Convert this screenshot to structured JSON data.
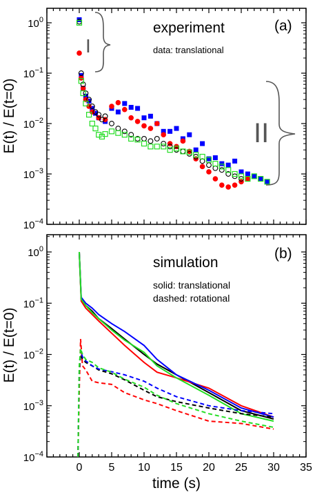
{
  "chart_data": [
    {
      "panel_id": "a",
      "type": "scatter",
      "panel_label": "(a)",
      "title": "experiment",
      "subtitle": "data: translational",
      "ylabel": "E(t) / E(t=0)",
      "xlabel": "",
      "xlim": [
        -5,
        35
      ],
      "ylim": [
        0.0001,
        2
      ],
      "yscale": "log",
      "yticks": [
        1,
        0.1,
        0.01,
        0.001,
        0.0001
      ],
      "ytick_labels": [
        "10^0",
        "10^-1",
        "10^-2",
        "10^-3",
        "10^-4"
      ],
      "annotations": [
        {
          "text": "I",
          "spans_y": [
            0.09,
            1.3
          ],
          "at_x": 1.5
        },
        {
          "text": "II",
          "spans_y": [
            0.0006,
            0.09
          ],
          "at_x": 31
        }
      ],
      "colors": {
        "black": "#000000",
        "red": "#ff0000",
        "blue": "#0000ff",
        "green": "#22dd22"
      },
      "series": [
        {
          "color_key": "blue",
          "marker": "filled-square",
          "x": [
            0,
            0.3,
            0.6,
            1,
            1.5,
            2,
            2.5,
            3,
            4,
            5,
            6,
            7,
            8,
            9,
            10,
            11,
            12,
            13,
            14,
            15,
            16,
            17,
            18,
            19,
            20,
            21,
            22,
            23,
            24,
            25,
            26,
            27,
            28,
            29
          ],
          "y": [
            1.15,
            0.09,
            0.05,
            0.035,
            0.028,
            0.02,
            0.016,
            0.013,
            0.011,
            0.02,
            0.017,
            0.025,
            0.021,
            0.02,
            0.013,
            0.014,
            0.01,
            0.007,
            0.007,
            0.008,
            0.005,
            0.006,
            0.003,
            0.004,
            0.002,
            0.0021,
            0.0016,
            0.0015,
            0.0018,
            0.0011,
            0.001,
            0.0009,
            0.0008,
            0.0007
          ]
        },
        {
          "color_key": "red",
          "marker": "filled-circle",
          "x": [
            0,
            0.3,
            0.6,
            1,
            1.5,
            2,
            3,
            4,
            5,
            6,
            7,
            8,
            9,
            10,
            11,
            12,
            13,
            14,
            15,
            16,
            17,
            18,
            19,
            20,
            21,
            22,
            23,
            24,
            25,
            26
          ],
          "y": [
            0.25,
            0.08,
            0.05,
            0.03,
            0.022,
            0.017,
            0.013,
            0.012,
            0.022,
            0.026,
            0.019,
            0.013,
            0.011,
            0.009,
            0.008,
            0.01,
            0.006,
            0.004,
            0.0035,
            0.0045,
            0.0028,
            0.002,
            0.0014,
            0.0011,
            0.0008,
            0.0006,
            0.00055,
            0.0006,
            0.0007,
            0.0008
          ]
        },
        {
          "color_key": "black",
          "marker": "open-circle",
          "x": [
            0,
            0.3,
            0.6,
            1,
            1.5,
            2,
            2.5,
            3,
            3.5,
            4,
            5,
            6,
            7,
            8,
            9,
            10,
            11,
            12,
            13,
            14,
            15,
            16,
            17,
            18,
            19,
            20,
            21,
            22,
            23,
            24,
            25
          ],
          "y": [
            1.05,
            0.1,
            0.06,
            0.04,
            0.03,
            0.022,
            0.017,
            0.015,
            0.012,
            0.014,
            0.01,
            0.008,
            0.007,
            0.006,
            0.005,
            0.005,
            0.0045,
            0.005,
            0.004,
            0.0035,
            0.003,
            0.0028,
            0.0025,
            0.0022,
            0.0018,
            0.0015,
            0.0013,
            0.0012,
            0.001,
            0.0009,
            0.0008
          ]
        },
        {
          "color_key": "green",
          "marker": "open-square",
          "x": [
            0,
            0.3,
            0.6,
            1,
            1.5,
            2,
            2.5,
            3,
            3.5,
            4,
            5,
            6,
            7,
            8,
            9,
            10,
            11,
            12,
            13,
            14,
            15,
            16,
            17,
            18,
            19,
            20,
            21,
            22,
            23,
            24,
            25,
            26,
            27,
            28,
            29
          ],
          "y": [
            1.0,
            0.07,
            0.04,
            0.025,
            0.015,
            0.01,
            0.008,
            0.006,
            0.0055,
            0.0062,
            0.007,
            0.0065,
            0.006,
            0.005,
            0.0048,
            0.004,
            0.0035,
            0.0035,
            0.0035,
            0.003,
            0.0032,
            0.0028,
            0.0027,
            0.0024,
            0.0022,
            0.0019,
            0.0016,
            0.0014,
            0.0012,
            0.001,
            0.0009,
            0.0008,
            0.0009,
            0.0008,
            0.0007
          ]
        }
      ]
    },
    {
      "panel_id": "b",
      "type": "line",
      "panel_label": "(b)",
      "title": "simulation",
      "legend_text": [
        "solid: translational",
        "dashed: rotational"
      ],
      "ylabel": "E(t) / E(t=0)",
      "xlabel": "time (s)",
      "xlim": [
        -5,
        35
      ],
      "ylim": [
        0.0001,
        2
      ],
      "yscale": "log",
      "xticks": [
        0,
        5,
        10,
        15,
        20,
        25,
        30,
        35
      ],
      "yticks": [
        1,
        0.1,
        0.01,
        0.001,
        0.0001
      ],
      "ytick_labels": [
        "10^0",
        "10^-1",
        "10^-2",
        "10^-3",
        "10^-4"
      ],
      "colors": {
        "black": "#000000",
        "red": "#ff0000",
        "blue": "#0000ff",
        "green": "#22dd22"
      },
      "series": [
        {
          "color_key": "black",
          "style": "solid",
          "x": [
            0,
            0.3,
            1,
            2,
            3,
            5,
            7,
            10,
            12,
            15,
            20,
            25,
            30
          ],
          "y": [
            1,
            0.12,
            0.09,
            0.07,
            0.05,
            0.032,
            0.02,
            0.01,
            0.0065,
            0.004,
            0.0018,
            0.0008,
            0.00055
          ]
        },
        {
          "color_key": "red",
          "style": "solid",
          "x": [
            0,
            0.3,
            1,
            2,
            3,
            5,
            7,
            10,
            12,
            15,
            20,
            25,
            30
          ],
          "y": [
            1,
            0.11,
            0.08,
            0.06,
            0.045,
            0.026,
            0.015,
            0.007,
            0.0045,
            0.0035,
            0.0022,
            0.001,
            0.0006
          ]
        },
        {
          "color_key": "blue",
          "style": "solid",
          "x": [
            0,
            0.3,
            1,
            2,
            3,
            5,
            7,
            10,
            12,
            15,
            20,
            25,
            30
          ],
          "y": [
            1,
            0.13,
            0.1,
            0.08,
            0.06,
            0.04,
            0.028,
            0.015,
            0.008,
            0.004,
            0.002,
            0.0009,
            0.0006
          ]
        },
        {
          "color_key": "green",
          "style": "solid",
          "x": [
            0,
            0.3,
            1,
            2,
            3,
            5,
            7,
            10,
            12,
            15,
            20,
            25,
            30
          ],
          "y": [
            1,
            0.12,
            0.09,
            0.065,
            0.05,
            0.03,
            0.019,
            0.011,
            0.006,
            0.0035,
            0.0016,
            0.0007,
            0.0005
          ]
        },
        {
          "color_key": "black",
          "style": "dashed",
          "x": [
            -0.2,
            0,
            0.2,
            0.5,
            1,
            2,
            3,
            5,
            7,
            10,
            12,
            15,
            20,
            25,
            30
          ],
          "y": [
            0.0001,
            0.004,
            0.01,
            0.008,
            0.007,
            0.006,
            0.005,
            0.0042,
            0.0032,
            0.002,
            0.0015,
            0.0012,
            0.0009,
            0.0007,
            0.0006
          ]
        },
        {
          "color_key": "red",
          "style": "dashed",
          "x": [
            -0.2,
            0,
            0.2,
            0.5,
            1,
            2,
            3,
            5,
            7,
            10,
            12,
            15,
            20,
            25,
            30
          ],
          "y": [
            0.0001,
            0.002,
            0.02,
            0.006,
            0.005,
            0.003,
            0.0028,
            0.0026,
            0.0018,
            0.0013,
            0.0011,
            0.0008,
            0.0005,
            0.00045,
            0.00035
          ]
        },
        {
          "color_key": "blue",
          "style": "dashed",
          "x": [
            -0.2,
            0,
            0.2,
            0.5,
            1,
            2,
            3,
            5,
            7,
            10,
            12,
            15,
            20,
            25,
            30
          ],
          "y": [
            0.0001,
            0.005,
            0.012,
            0.009,
            0.0075,
            0.006,
            0.0052,
            0.0046,
            0.004,
            0.003,
            0.0022,
            0.0015,
            0.001,
            0.0008,
            0.0007
          ]
        },
        {
          "color_key": "green",
          "style": "dashed",
          "x": [
            -0.2,
            0,
            0.2,
            0.5,
            1,
            2,
            3,
            5,
            7,
            10,
            12,
            15,
            20,
            25,
            30
          ],
          "y": [
            0.0001,
            0.006,
            0.013,
            0.01,
            0.008,
            0.007,
            0.0055,
            0.0045,
            0.0033,
            0.0023,
            0.0016,
            0.0011,
            0.0007,
            0.0005,
            0.00038
          ]
        }
      ]
    }
  ]
}
